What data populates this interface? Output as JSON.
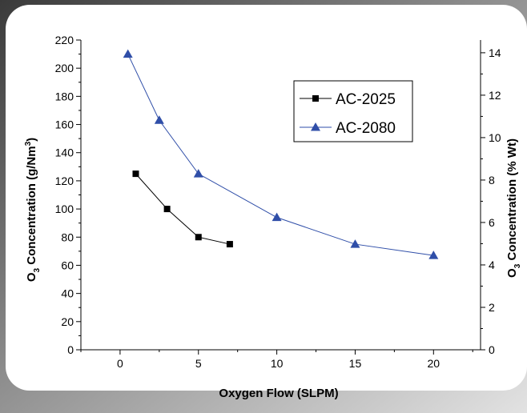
{
  "chart_data": {
    "type": "line",
    "xlabel": "Oxygen Flow (SLPM)",
    "ylabel_left": {
      "main": "O",
      "sub": "3",
      "mid": " Concentration (g/Nm",
      "sup": "3",
      "end": ")"
    },
    "ylabel_right": {
      "main": "O",
      "sub": "3",
      "mid": " Concentration (% Wt)"
    },
    "xlim": [
      -2.5,
      23
    ],
    "ylim_left": [
      0,
      220
    ],
    "ylim_right": [
      0,
      14.6
    ],
    "x_ticks": [
      0,
      5,
      10,
      15,
      20
    ],
    "x_tick_labels": [
      "0",
      "5",
      "10",
      "15",
      "20"
    ],
    "y_left_ticks": [
      0,
      20,
      40,
      60,
      80,
      100,
      120,
      140,
      160,
      180,
      200,
      220
    ],
    "y_left_tick_labels": [
      "0",
      "20",
      "40",
      "60",
      "80",
      "100",
      "120",
      "140",
      "160",
      "180",
      "200",
      "220"
    ],
    "y_right_ticks": [
      0,
      2,
      4,
      6,
      8,
      10,
      12,
      14
    ],
    "y_right_tick_labels": [
      "0",
      "2",
      "4",
      "6",
      "8",
      "10",
      "12",
      "14"
    ],
    "legend_position": "top-right",
    "series": [
      {
        "name": "AC-2025",
        "marker": "square",
        "color": "#000000",
        "x": [
          1,
          3,
          5,
          7
        ],
        "y": [
          125,
          100,
          80,
          75
        ]
      },
      {
        "name": "AC-2080",
        "marker": "triangle",
        "color": "#2f4ea8",
        "x": [
          0.5,
          2.5,
          5,
          10,
          15,
          20
        ],
        "y": [
          210,
          163,
          125,
          94,
          75,
          67
        ]
      }
    ]
  },
  "colors": {
    "frame_gradient_top": "#3c3c3c",
    "frame_gradient_bottom": "#d9d9d9",
    "panel_background": "#ffffff"
  }
}
